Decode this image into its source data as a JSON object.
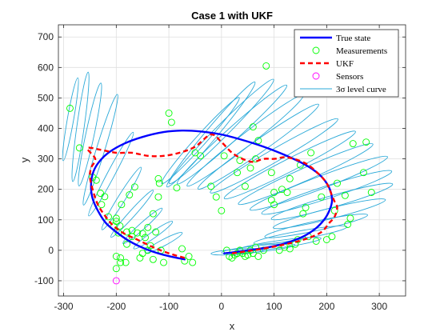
{
  "chart_data": {
    "type": "scatter",
    "title": "Case 1 with UKF",
    "xlabel": "x",
    "ylabel": "y",
    "xlim": [
      -310,
      350
    ],
    "ylim": [
      -150,
      740
    ],
    "x_ticks": [
      -300,
      -200,
      -100,
      0,
      100,
      200,
      300
    ],
    "y_ticks": [
      -100,
      0,
      100,
      200,
      300,
      400,
      500,
      600,
      700
    ],
    "grid": true,
    "legend_position": "top-right",
    "legend": [
      {
        "key": "true_state",
        "label": "True state",
        "style": "line",
        "color": "#0000ff"
      },
      {
        "key": "measurements",
        "label": "Measurements",
        "style": "circle",
        "color": "#00ff00"
      },
      {
        "key": "ukf",
        "label": "UKF",
        "style": "dashed",
        "color": "#ff0000"
      },
      {
        "key": "sensors",
        "label": "Sensors",
        "style": "circle",
        "color": "#ff00ff"
      },
      {
        "key": "level_curve",
        "label": "3σ level curve",
        "style": "thin-line",
        "color": "#2aa9d8"
      }
    ],
    "series": [
      {
        "key": "true_state",
        "color": "#0000ff",
        "points": [
          [
            -70,
            -30
          ],
          [
            -110,
            -15
          ],
          [
            -145,
            5
          ],
          [
            -175,
            30
          ],
          [
            -200,
            60
          ],
          [
            -220,
            90
          ],
          [
            -235,
            130
          ],
          [
            -245,
            170
          ],
          [
            -248,
            210
          ],
          [
            -245,
            250
          ],
          [
            -235,
            285
          ],
          [
            -215,
            320
          ],
          [
            -185,
            350
          ],
          [
            -150,
            372
          ],
          [
            -110,
            388
          ],
          [
            -75,
            393
          ],
          [
            -40,
            390
          ],
          [
            0,
            380
          ],
          [
            40,
            362
          ],
          [
            80,
            340
          ],
          [
            120,
            313
          ],
          [
            160,
            280
          ],
          [
            185,
            250
          ],
          [
            200,
            220
          ],
          [
            208,
            190
          ],
          [
            210,
            160
          ],
          [
            205,
            130
          ],
          [
            195,
            100
          ],
          [
            178,
            70
          ],
          [
            155,
            45
          ],
          [
            125,
            25
          ],
          [
            95,
            12
          ],
          [
            60,
            2
          ],
          [
            30,
            -5
          ],
          [
            5,
            -10
          ]
        ]
      },
      {
        "key": "ukf",
        "color": "#ff0000",
        "points": [
          [
            -70,
            -25
          ],
          [
            -100,
            -10
          ],
          [
            -130,
            10
          ],
          [
            -160,
            35
          ],
          [
            -185,
            55
          ],
          [
            -205,
            80
          ],
          [
            -220,
            110
          ],
          [
            -235,
            150
          ],
          [
            -245,
            200
          ],
          [
            -250,
            240
          ],
          [
            -248,
            270
          ],
          [
            -240,
            300
          ],
          [
            -255,
            335
          ],
          [
            -230,
            330
          ],
          [
            -200,
            320
          ],
          [
            -170,
            320
          ],
          [
            -140,
            310
          ],
          [
            -110,
            310
          ],
          [
            -80,
            320
          ],
          [
            -50,
            340
          ],
          [
            -20,
            380
          ],
          [
            0,
            355
          ],
          [
            20,
            320
          ],
          [
            40,
            300
          ],
          [
            60,
            290
          ],
          [
            80,
            300
          ],
          [
            100,
            300
          ],
          [
            125,
            305
          ],
          [
            160,
            285
          ],
          [
            185,
            250
          ],
          [
            200,
            220
          ],
          [
            210,
            180
          ],
          [
            215,
            160
          ],
          [
            220,
            140
          ],
          [
            215,
            110
          ],
          [
            205,
            90
          ],
          [
            190,
            60
          ],
          [
            165,
            40
          ],
          [
            135,
            25
          ],
          [
            100,
            12
          ],
          [
            60,
            0
          ],
          [
            20,
            -10
          ]
        ]
      },
      {
        "key": "measurements",
        "color": "#00ff00",
        "points": [
          [
            -288,
            466
          ],
          [
            -270,
            336
          ],
          [
            -245,
            240
          ],
          [
            -238,
            230
          ],
          [
            -230,
            187
          ],
          [
            -228,
            150
          ],
          [
            -222,
            176
          ],
          [
            -215,
            110
          ],
          [
            -205,
            80
          ],
          [
            -200,
            95
          ],
          [
            -200,
            105
          ],
          [
            -196,
            57
          ],
          [
            -193,
            80
          ],
          [
            -190,
            150
          ],
          [
            -180,
            20
          ],
          [
            -175,
            182
          ],
          [
            -170,
            65
          ],
          [
            -165,
            208
          ],
          [
            -160,
            57
          ],
          [
            -155,
            -25
          ],
          [
            -150,
            -10
          ],
          [
            -140,
            0
          ],
          [
            -135,
            15
          ],
          [
            -130,
            -30
          ],
          [
            -120,
            175
          ],
          [
            -120,
            235
          ],
          [
            -118,
            220
          ],
          [
            -115,
            0
          ],
          [
            -110,
            -40
          ],
          [
            -100,
            450
          ],
          [
            -95,
            420
          ],
          [
            -85,
            205
          ],
          [
            -75,
            5
          ],
          [
            -70,
            -35
          ],
          [
            -62,
            -20
          ],
          [
            -55,
            -40
          ],
          [
            -200,
            -20
          ],
          [
            -200,
            -60
          ],
          [
            -192,
            -25
          ],
          [
            -192,
            -40
          ],
          [
            -182,
            -40
          ],
          [
            -50,
            320
          ],
          [
            -40,
            310
          ],
          [
            -20,
            210
          ],
          [
            -10,
            175
          ],
          [
            0,
            130
          ],
          [
            5,
            310
          ],
          [
            10,
            0
          ],
          [
            15,
            -20
          ],
          [
            20,
            -25
          ],
          [
            25,
            -15
          ],
          [
            30,
            -10
          ],
          [
            35,
            0
          ],
          [
            40,
            -10
          ],
          [
            45,
            -20
          ],
          [
            50,
            -15
          ],
          [
            55,
            0
          ],
          [
            60,
            -10
          ],
          [
            65,
            10
          ],
          [
            70,
            -20
          ],
          [
            80,
            0
          ],
          [
            30,
            255
          ],
          [
            35,
            295
          ],
          [
            45,
            210
          ],
          [
            55,
            270
          ],
          [
            60,
            405
          ],
          [
            65,
            300
          ],
          [
            70,
            360
          ],
          [
            85,
            605
          ],
          [
            95,
            165
          ],
          [
            100,
            150
          ],
          [
            100,
            190
          ],
          [
            110,
            0
          ],
          [
            120,
            10
          ],
          [
            130,
            5
          ],
          [
            140,
            20
          ],
          [
            145,
            35
          ],
          [
            150,
            280
          ],
          [
            155,
            120
          ],
          [
            160,
            140
          ],
          [
            165,
            45
          ],
          [
            170,
            320
          ],
          [
            180,
            30
          ],
          [
            190,
            175
          ],
          [
            200,
            35
          ],
          [
            210,
            45
          ],
          [
            215,
            130
          ],
          [
            220,
            220
          ],
          [
            235,
            180
          ],
          [
            240,
            85
          ],
          [
            245,
            105
          ],
          [
            250,
            350
          ],
          [
            270,
            255
          ],
          [
            275,
            355
          ],
          [
            285,
            190
          ],
          [
            -180,
            60
          ],
          [
            -170,
            45
          ],
          [
            -150,
            55
          ],
          [
            -140,
            75
          ],
          [
            -145,
            42
          ],
          [
            -125,
            60
          ],
          [
            -130,
            120
          ],
          [
            115,
            200
          ],
          [
            125,
            190
          ],
          [
            130,
            235
          ],
          [
            95,
            255
          ]
        ]
      },
      {
        "key": "sensors",
        "color": "#ff00ff",
        "points": [
          [
            -200,
            -100
          ]
        ]
      }
    ],
    "level_curves": [
      {
        "cx": -287,
        "cy": 430,
        "rx": 80,
        "ry": 6,
        "angle": 80
      },
      {
        "cx": -268,
        "cy": 405,
        "rx": 105,
        "ry": 7,
        "angle": 82
      },
      {
        "cx": -250,
        "cy": 380,
        "rx": 100,
        "ry": 8,
        "angle": 78
      },
      {
        "cx": -230,
        "cy": 330,
        "rx": 110,
        "ry": 8,
        "angle": 73
      },
      {
        "cx": -210,
        "cy": 250,
        "rx": 90,
        "ry": 7,
        "angle": 62
      },
      {
        "cx": -190,
        "cy": 170,
        "rx": 70,
        "ry": 7,
        "angle": 58
      },
      {
        "cx": -170,
        "cy": 120,
        "rx": 60,
        "ry": 6,
        "angle": 48
      },
      {
        "cx": -150,
        "cy": 80,
        "rx": 50,
        "ry": 6,
        "angle": 42
      },
      {
        "cx": -130,
        "cy": 50,
        "rx": 45,
        "ry": 6,
        "angle": 35
      },
      {
        "cx": -110,
        "cy": 25,
        "rx": 40,
        "ry": 6,
        "angle": 28
      },
      {
        "cx": -40,
        "cy": 360,
        "rx": 110,
        "ry": 10,
        "angle": 48
      },
      {
        "cx": -20,
        "cy": 380,
        "rx": 130,
        "ry": 11,
        "angle": 50
      },
      {
        "cx": 0,
        "cy": 390,
        "rx": 140,
        "ry": 12,
        "angle": 45
      },
      {
        "cx": 20,
        "cy": 380,
        "rx": 140,
        "ry": 12,
        "angle": 42
      },
      {
        "cx": 45,
        "cy": 360,
        "rx": 140,
        "ry": 12,
        "angle": 38
      },
      {
        "cx": 70,
        "cy": 340,
        "rx": 140,
        "ry": 12,
        "angle": 35
      },
      {
        "cx": 100,
        "cy": 310,
        "rx": 140,
        "ry": 12,
        "angle": 30
      },
      {
        "cx": 130,
        "cy": 280,
        "rx": 140,
        "ry": 12,
        "angle": 27
      },
      {
        "cx": 160,
        "cy": 250,
        "rx": 140,
        "ry": 12,
        "angle": 24
      },
      {
        "cx": 185,
        "cy": 220,
        "rx": 140,
        "ry": 12,
        "angle": 21
      },
      {
        "cx": 200,
        "cy": 190,
        "rx": 130,
        "ry": 12,
        "angle": 18
      },
      {
        "cx": 210,
        "cy": 160,
        "rx": 120,
        "ry": 11,
        "angle": 16
      },
      {
        "cx": 205,
        "cy": 120,
        "rx": 110,
        "ry": 10,
        "angle": 14
      },
      {
        "cx": 180,
        "cy": 80,
        "rx": 100,
        "ry": 9,
        "angle": 12
      },
      {
        "cx": 150,
        "cy": 50,
        "rx": 90,
        "ry": 8,
        "angle": 10
      },
      {
        "cx": 110,
        "cy": 20,
        "rx": 80,
        "ry": 7,
        "angle": 8
      },
      {
        "cx": 70,
        "cy": 5,
        "rx": 70,
        "ry": 6,
        "angle": 6
      },
      {
        "cx": 30,
        "cy": -5,
        "rx": 50,
        "ry": 5,
        "angle": 4
      }
    ]
  }
}
